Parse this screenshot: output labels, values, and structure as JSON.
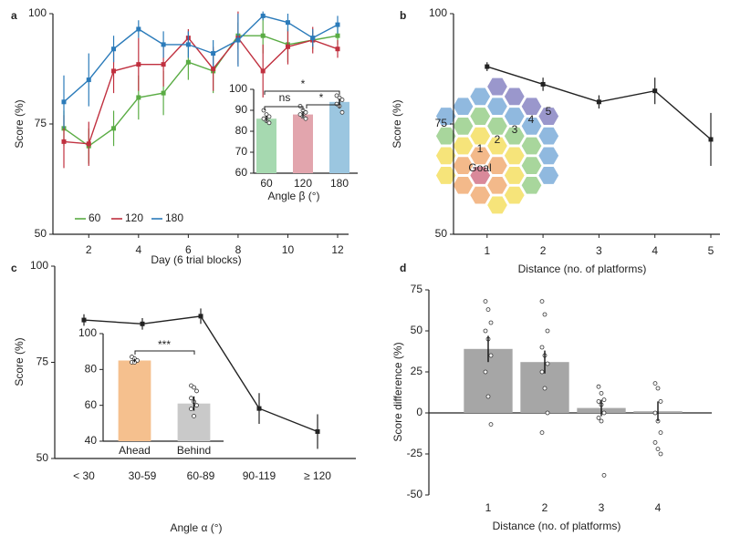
{
  "chart_data": [
    {
      "type": "line",
      "panel": "a",
      "xlabel": "Day (6 trial blocks)",
      "ylabel": "Score (%)",
      "x": [
        1,
        2,
        3,
        4,
        5,
        6,
        7,
        8,
        9,
        10,
        11,
        12
      ],
      "xlim": [
        1,
        12
      ],
      "xticks": [
        2,
        4,
        6,
        8,
        10,
        12
      ],
      "ylim": [
        50,
        100
      ],
      "yticks": [
        50,
        75,
        100
      ],
      "legend": "lower left",
      "series": [
        {
          "name": "60",
          "color": "#5aac44",
          "values": [
            74,
            70,
            74,
            81,
            82,
            89,
            87,
            95,
            95,
            93,
            94,
            95
          ],
          "errors": [
            4,
            4,
            4,
            5,
            5,
            4,
            5,
            3,
            4,
            4,
            2,
            2
          ]
        },
        {
          "name": "120",
          "color": "#c0303f",
          "values": [
            71,
            70.5,
            87,
            88.5,
            88.5,
            94.5,
            87.5,
            94.5,
            87,
            92.5,
            94,
            92
          ],
          "errors": [
            6,
            5,
            5,
            6,
            5,
            2,
            5,
            6,
            6,
            4,
            3,
            2
          ]
        },
        {
          "name": "180",
          "color": "#2b7bba",
          "values": [
            80,
            85,
            92,
            96.5,
            93,
            93,
            91,
            94,
            99.5,
            98,
            94.5,
            97.5
          ],
          "errors": [
            6,
            6,
            3,
            2,
            3,
            3,
            3,
            6,
            1,
            2,
            2,
            2
          ]
        }
      ]
    },
    {
      "type": "bar",
      "xlabel": "Angle β (°)",
      "categories": [
        "60",
        "120",
        "180"
      ],
      "values": [
        86,
        88,
        94
      ],
      "errors": [
        1.5,
        1.5,
        1.5
      ],
      "colors": [
        "#a6d9b0",
        "#e2a5ad",
        "#9bc6e0"
      ],
      "ylim": [
        60,
        100
      ],
      "yticks": [
        60,
        70,
        80,
        90,
        100
      ],
      "points": [
        [
          90,
          88,
          87,
          86,
          85,
          84
        ],
        [
          92,
          90,
          89,
          88,
          87,
          86
        ],
        [
          97,
          96,
          95,
          93,
          92,
          89
        ]
      ],
      "annotations": [
        "ns",
        "*",
        "*"
      ]
    },
    {
      "type": "line",
      "panel": "b",
      "xlabel": "Distance (no. of platforms)",
      "ylabel": "Score (%)",
      "x": [
        1,
        2,
        3,
        4,
        5
      ],
      "xlim": [
        0.4,
        5
      ],
      "xticks": [
        1,
        2,
        3,
        4,
        5
      ],
      "ylim": [
        50,
        100
      ],
      "yticks": [
        50,
        75,
        100
      ],
      "series": [
        {
          "color": "#222222",
          "values": [
            88,
            84,
            80,
            82.5,
            71.5
          ],
          "errors": [
            1,
            1.5,
            1.5,
            3,
            6
          ]
        }
      ],
      "annotations": [
        "1",
        "2",
        "3",
        "4",
        "5",
        "Goal"
      ]
    },
    {
      "type": "line",
      "panel": "c",
      "xlabel": "Angle α (°)",
      "ylabel": "Score (%)",
      "categories": [
        "< 30",
        "30-59",
        "60-89",
        "90-119",
        "≥ 120"
      ],
      "ylim": [
        50,
        100
      ],
      "yticks": [
        50,
        75,
        100
      ],
      "series": [
        {
          "color": "#222222",
          "values": [
            86,
            85,
            87,
            63,
            57
          ],
          "errors": [
            1.5,
            1.5,
            2,
            4,
            4.5
          ]
        }
      ]
    },
    {
      "type": "bar",
      "categories": [
        "Ahead",
        "Behind"
      ],
      "values": [
        85,
        61
      ],
      "errors": [
        1,
        4
      ],
      "colors": [
        "#f5c08e",
        "#c9c9c9"
      ],
      "ylim": [
        40,
        100
      ],
      "yticks": [
        40,
        60,
        80,
        100
      ],
      "points": [
        [
          87,
          86,
          85,
          84,
          84
        ],
        [
          71,
          70,
          68,
          64,
          62,
          60,
          58,
          54
        ]
      ],
      "annotations": [
        "***"
      ]
    },
    {
      "type": "bar",
      "panel": "d",
      "xlabel": "Distance (no. of platforms)",
      "ylabel": "Score difference (%)",
      "categories": [
        "1",
        "2",
        "3",
        "4"
      ],
      "values": [
        39,
        31,
        3,
        1
      ],
      "errors": [
        8,
        7,
        5,
        6
      ],
      "color": "#a6a6a6",
      "ylim": [
        -50,
        75
      ],
      "yticks": [
        -50,
        -25,
        0,
        25,
        50,
        75
      ],
      "points": [
        [
          68,
          63,
          55,
          50,
          45,
          35,
          25,
          10,
          -7
        ],
        [
          68,
          60,
          50,
          40,
          35,
          30,
          25,
          15,
          0,
          -12
        ],
        [
          16,
          12,
          8,
          7,
          5,
          0,
          -3,
          -5,
          -38
        ],
        [
          18,
          15,
          7,
          0,
          -5,
          -12,
          -18,
          -22,
          -25
        ]
      ]
    }
  ]
}
